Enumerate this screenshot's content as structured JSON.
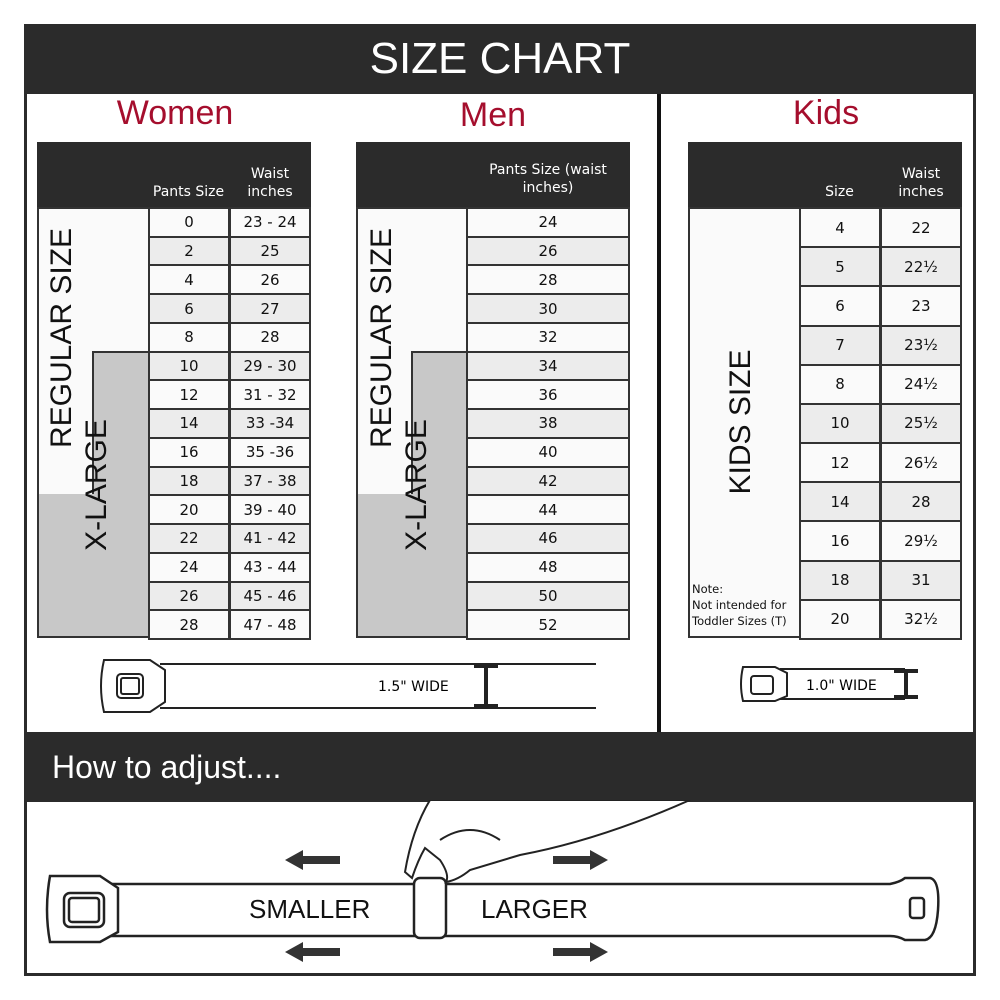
{
  "title": "SIZE CHART",
  "colors": {
    "accent": "#a50e2d",
    "dark": "#2b2b2b",
    "xlarge": "#c8c8c8"
  },
  "women": {
    "heading": "Women",
    "col1": "Pants Size",
    "col2": "Waist inches",
    "regular_label": "REGULAR SIZE",
    "xlarge_label": "X-LARGE",
    "rows": [
      [
        "0",
        "23 - 24"
      ],
      [
        "2",
        "25"
      ],
      [
        "4",
        "26"
      ],
      [
        "6",
        "27"
      ],
      [
        "8",
        "28"
      ],
      [
        "10",
        "29 - 30"
      ],
      [
        "12",
        "31 - 32"
      ],
      [
        "14",
        "33 -34"
      ],
      [
        "16",
        "35 -36"
      ],
      [
        "18",
        "37 - 38"
      ],
      [
        "20",
        "39 - 40"
      ],
      [
        "22",
        "41 - 42"
      ],
      [
        "24",
        "43 - 44"
      ],
      [
        "26",
        "45 - 46"
      ],
      [
        "28",
        "47 - 48"
      ]
    ],
    "belt_width": "1.5\" WIDE"
  },
  "men": {
    "heading": "Men",
    "col1": "Pants Size (waist inches)",
    "regular_label": "REGULAR SIZE",
    "xlarge_label": "X-LARGE",
    "rows": [
      "24",
      "26",
      "28",
      "30",
      "32",
      "34",
      "36",
      "38",
      "40",
      "42",
      "44",
      "46",
      "48",
      "50",
      "52"
    ]
  },
  "kids": {
    "heading": "Kids",
    "col1": "Size",
    "col2": "Waist inches",
    "label": "KIDS SIZE",
    "note_title": "Note:",
    "note_text": "Not intended for Toddler Sizes (T)",
    "rows": [
      [
        "4",
        "22"
      ],
      [
        "5",
        "22½"
      ],
      [
        "6",
        "23"
      ],
      [
        "7",
        "23½"
      ],
      [
        "8",
        "24½"
      ],
      [
        "10",
        "25½"
      ],
      [
        "12",
        "26½"
      ],
      [
        "14",
        "28"
      ],
      [
        "16",
        "29½"
      ],
      [
        "18",
        "31"
      ],
      [
        "20",
        "32½"
      ]
    ],
    "belt_width": "1.0\" WIDE"
  },
  "adjust": {
    "heading": "How to adjust....",
    "smaller": "SMALLER",
    "larger": "LARGER"
  }
}
